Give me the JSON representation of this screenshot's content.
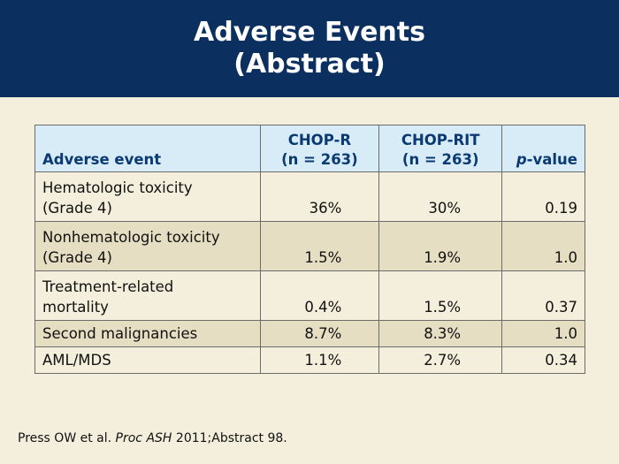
{
  "header": {
    "title_line1": "Adverse Events",
    "title_line2": "(Abstract)"
  },
  "table": {
    "columns": {
      "event": "Adverse event",
      "chop_r_name": "CHOP-R",
      "chop_r_n": "(n = 263)",
      "chop_rit_name": "CHOP-RIT",
      "chop_rit_n": "(n = 263)",
      "pvalue_p": "p",
      "pvalue_rest": "-value"
    },
    "rows": [
      {
        "event_line1": "Hematologic toxicity",
        "event_line2": "(Grade 4)",
        "chop_r": "36%",
        "chop_rit": "30%",
        "pvalue": "0.19"
      },
      {
        "event_line1": "Nonhematologic toxicity",
        "event_line2": "(Grade 4)",
        "chop_r": "1.5%",
        "chop_rit": "1.9%",
        "pvalue": "1.0"
      },
      {
        "event_line1": "Treatment-related",
        "event_line2": "mortality",
        "chop_r": "0.4%",
        "chop_rit": "1.5%",
        "pvalue": "0.37"
      },
      {
        "event_line1": "Second malignancies",
        "chop_r": "8.7%",
        "chop_rit": "8.3%",
        "pvalue": "1.0"
      },
      {
        "event_line1": "AML/MDS",
        "chop_r": "1.1%",
        "chop_rit": "2.7%",
        "pvalue": "0.34"
      }
    ]
  },
  "footnote": {
    "authors": "Press OW et al.",
    "journal": "Proc ASH",
    "citation": "2011;Abstract 98."
  },
  "colors": {
    "header_bg": "#0b2f5e",
    "slide_bg": "#f4efdc",
    "table_header_bg": "#d7ecf7",
    "table_header_text": "#0b3a73",
    "shaded_row_bg": "#e6dec3"
  }
}
